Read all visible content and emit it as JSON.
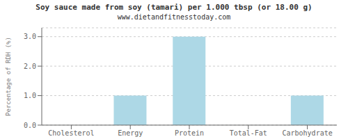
{
  "chart_data": {
    "type": "bar",
    "title": "Soy sauce made from soy (tamari) per 1.000 tbsp (or 18.00 g)",
    "subtitle": "www.dietandfitnesstoday.com",
    "categories": [
      "Cholesterol",
      "Energy",
      "Protein",
      "Total-Fat",
      "Carbohydrate"
    ],
    "values": [
      0,
      1.0,
      3.0,
      0,
      1.0
    ],
    "color": "#add8e6",
    "ylabel": "Percentage of RDH (%)",
    "ylim": [
      0,
      3.3
    ],
    "yticks": [
      {
        "value": 0.0,
        "label": "0.0"
      },
      {
        "value": 1.0,
        "label": "1.0"
      },
      {
        "value": 2.0,
        "label": "2.0"
      },
      {
        "value": 3.0,
        "label": "3.0"
      }
    ],
    "grid": true
  }
}
